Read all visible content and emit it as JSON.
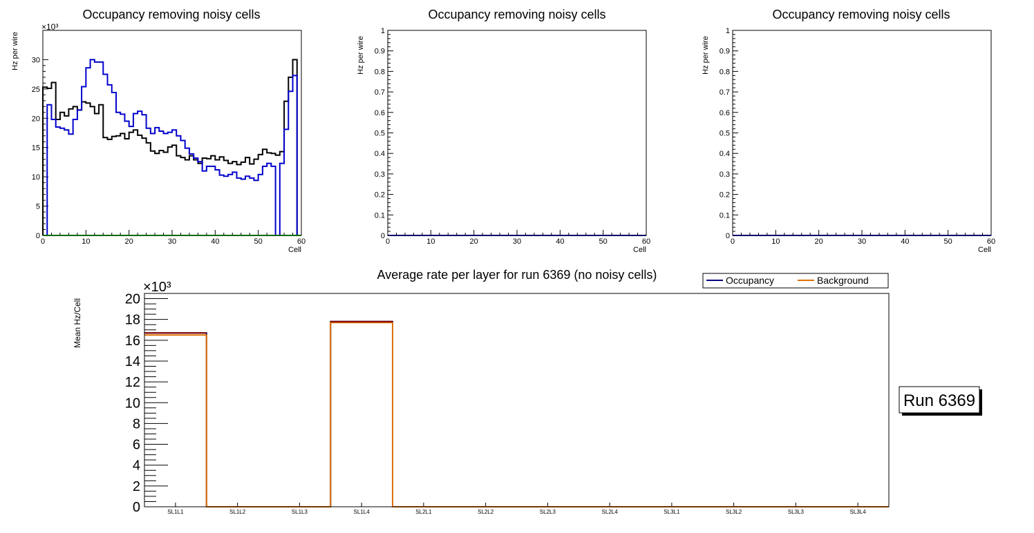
{
  "colors": {
    "black_series": "#000000",
    "blue_series": "#0000cc",
    "green_series": "#00cc00",
    "occupancy": "#000080",
    "background": "#e07000",
    "dark_red": "#800000"
  },
  "chart_data": [
    {
      "type": "line",
      "step": true,
      "title": "Occupancy removing noisy cells",
      "xlabel": "Cell",
      "ylabel": "Hz per wire",
      "yscale_label": "×10³",
      "xlim": [
        0,
        60
      ],
      "ylim": [
        0,
        35
      ],
      "xticks": [
        0,
        10,
        20,
        30,
        40,
        50,
        60
      ],
      "yticks": [
        0,
        5,
        10,
        15,
        20,
        25,
        30
      ],
      "series": [
        {
          "name": "black",
          "color": "#000000",
          "bin_width": 1,
          "values": [
            25.3,
            25.1,
            26.1,
            19.8,
            21.0,
            20.4,
            21.6,
            22.0,
            21.4,
            22.8,
            22.6,
            22.0,
            20.8,
            22.3,
            16.7,
            16.4,
            16.9,
            17.0,
            17.4,
            16.5,
            17.6,
            18.0,
            17.1,
            16.6,
            15.8,
            14.4,
            14.0,
            14.5,
            14.2,
            15.1,
            15.4,
            13.6,
            13.3,
            12.9,
            13.6,
            12.9,
            12.3,
            13.2,
            13.1,
            13.6,
            12.9,
            13.4,
            12.8,
            12.3,
            12.6,
            12.1,
            12.5,
            13.3,
            12.2,
            13.0,
            13.8,
            14.7,
            14.1,
            14.0,
            13.7,
            14.3,
            22.9,
            27.0,
            30.0,
            0
          ]
        },
        {
          "name": "blue",
          "color": "#0000cc",
          "bin_width": 1,
          "values": [
            0,
            22.3,
            19.8,
            18.5,
            18.3,
            18.0,
            17.3,
            19.8,
            21.4,
            25.4,
            28.6,
            30.0,
            29.6,
            29.6,
            27.5,
            25.7,
            24.4,
            21.0,
            20.7,
            19.5,
            18.6,
            20.8,
            21.2,
            20.6,
            18.3,
            17.4,
            18.4,
            17.8,
            17.4,
            17.6,
            18.0,
            17.0,
            16.2,
            14.9,
            13.9,
            13.2,
            12.6,
            11.0,
            11.8,
            11.8,
            11.2,
            10.3,
            10.1,
            10.4,
            10.8,
            9.8,
            9.6,
            10.1,
            9.8,
            9.4,
            10.4,
            11.8,
            12.3,
            11.8,
            0,
            12.3,
            18.1,
            24.6,
            27.3,
            0
          ]
        },
        {
          "name": "green",
          "color": "#00cc00",
          "values": [
            0
          ]
        }
      ]
    },
    {
      "type": "line",
      "title": "Occupancy removing noisy cells",
      "xlabel": "Cell",
      "ylabel": "Hz per wire",
      "xlim": [
        0,
        60
      ],
      "ylim": [
        0,
        1
      ],
      "xticks": [
        0,
        10,
        20,
        30,
        40,
        50,
        60
      ],
      "yticks": [
        0,
        0.1,
        0.2,
        0.3,
        0.4,
        0.5,
        0.6,
        0.7,
        0.8,
        0.9,
        1
      ],
      "series": [
        {
          "name": "blue",
          "color": "#0000cc",
          "values": [
            0
          ]
        }
      ]
    },
    {
      "type": "line",
      "title": "Occupancy removing noisy cells",
      "xlabel": "Cell",
      "ylabel": "Hz per wire",
      "xlim": [
        0,
        60
      ],
      "ylim": [
        0,
        1
      ],
      "xticks": [
        0,
        10,
        20,
        30,
        40,
        50,
        60
      ],
      "yticks": [
        0,
        0.1,
        0.2,
        0.3,
        0.4,
        0.5,
        0.6,
        0.7,
        0.8,
        0.9,
        1
      ],
      "series": [
        {
          "name": "blue",
          "color": "#0000cc",
          "values": [
            0
          ]
        }
      ]
    },
    {
      "type": "bar",
      "step": true,
      "title": "Average rate per layer for run 6369 (no noisy cells)",
      "xlabel": "",
      "ylabel": "Mean Hz/Cell",
      "yscale_label": "×10³",
      "ylim": [
        0,
        20.5
      ],
      "yticks": [
        0,
        2,
        4,
        6,
        8,
        10,
        12,
        14,
        16,
        18,
        20
      ],
      "categories": [
        "SL1L1",
        "SL1L2",
        "SL1L3",
        "SL1L4",
        "SL2L1",
        "SL2L2",
        "SL2L3",
        "SL2L4",
        "SL3L1",
        "SL3L2",
        "SL3L3",
        "SL3L4"
      ],
      "series": [
        {
          "name": "Occupancy",
          "color": "#000080",
          "values": [
            16.7,
            0,
            0,
            17.8,
            0,
            0,
            0,
            0,
            0,
            0,
            0,
            0
          ]
        },
        {
          "name": "Background",
          "color": "#e07000",
          "values": [
            16.5,
            0,
            0,
            17.7,
            0,
            0,
            0,
            0,
            0,
            0,
            0,
            0
          ]
        }
      ],
      "legend": [
        "Occupancy",
        "Background"
      ],
      "legend_position": "top-right"
    }
  ],
  "run_label": "Run 6369"
}
